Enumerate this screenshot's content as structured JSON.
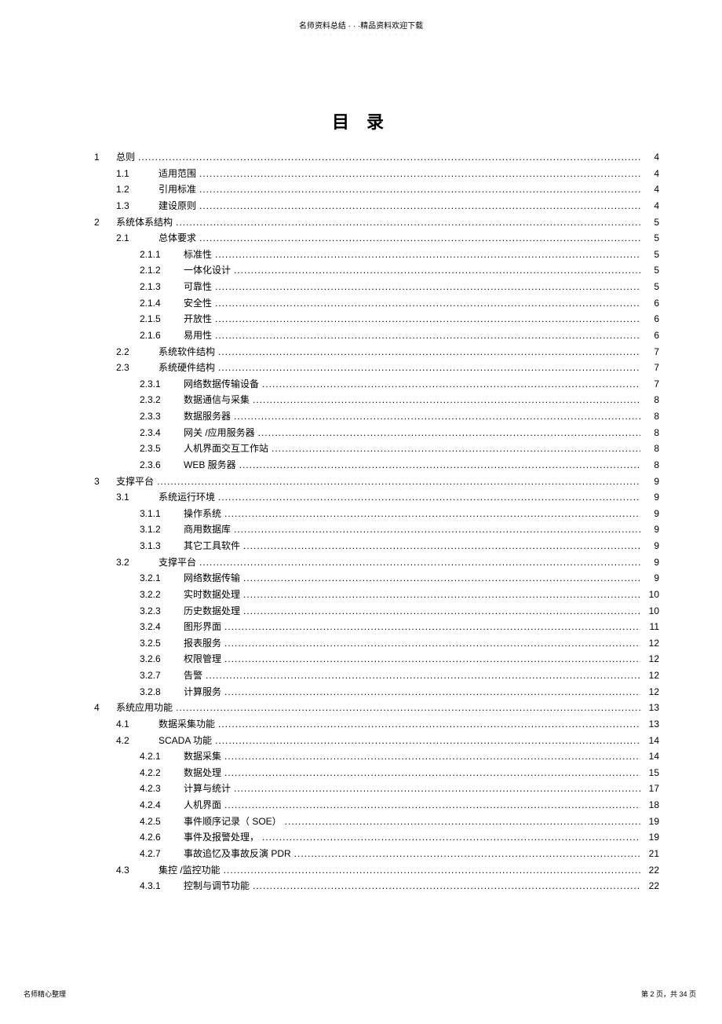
{
  "header": {
    "top": "名师资料总结 · · ·精品资料欢迎下载",
    "sub": "· · · · · · · · · · · · · · · · · ·"
  },
  "title": "目  录",
  "toc": [
    {
      "level": 1,
      "num": "1",
      "label": "总则",
      "page": "4"
    },
    {
      "level": 2,
      "num": "1.1",
      "label": "适用范围",
      "page": "4"
    },
    {
      "level": 2,
      "num": "1.2",
      "label": "引用标准",
      "page": "4"
    },
    {
      "level": 2,
      "num": "1.3",
      "label": "建设原则",
      "page": "4"
    },
    {
      "level": 1,
      "num": "2",
      "label": "系统体系结构",
      "page": "5"
    },
    {
      "level": 2,
      "num": "2.1",
      "label": "总体要求",
      "page": "5"
    },
    {
      "level": 3,
      "num": "2.1.1",
      "label": "标准性",
      "page": "5"
    },
    {
      "level": 3,
      "num": "2.1.2",
      "label": "一体化设计",
      "page": "5"
    },
    {
      "level": 3,
      "num": "2.1.3",
      "label": "可靠性",
      "page": "5"
    },
    {
      "level": 3,
      "num": "2.1.4",
      "label": "安全性",
      "page": "6"
    },
    {
      "level": 3,
      "num": "2.1.5",
      "label": "开放性",
      "page": "6"
    },
    {
      "level": 3,
      "num": "2.1.6",
      "label": "易用性",
      "page": "6"
    },
    {
      "level": 2,
      "num": "2.2",
      "label": "系统软件结构",
      "page": "7"
    },
    {
      "level": 2,
      "num": "2.3",
      "label": "系统硬件结构",
      "page": "7"
    },
    {
      "level": 3,
      "num": "2.3.1",
      "label": "网络数据传输设备",
      "page": "7"
    },
    {
      "level": 3,
      "num": "2.3.2",
      "label": "数据通信与采集",
      "page": "8"
    },
    {
      "level": 3,
      "num": "2.3.3",
      "label": "数据服务器",
      "page": "8"
    },
    {
      "level": 3,
      "num": "2.3.4",
      "label": "网关 /应用服务器",
      "page": "8"
    },
    {
      "level": 3,
      "num": "2.3.5",
      "label": "人机界面交互工作站",
      "page": "8"
    },
    {
      "level": 3,
      "num": "2.3.6",
      "label": "WEB 服务器",
      "page": "8"
    },
    {
      "level": 1,
      "num": "3",
      "label": "支撑平台",
      "page": "9"
    },
    {
      "level": 2,
      "num": "3.1",
      "label": "系统运行环境",
      "page": "9"
    },
    {
      "level": 3,
      "num": "3.1.1",
      "label": "操作系统",
      "page": "9"
    },
    {
      "level": 3,
      "num": "3.1.2",
      "label": "商用数据库",
      "page": "9"
    },
    {
      "level": 3,
      "num": "3.1.3",
      "label": "其它工具软件",
      "page": "9"
    },
    {
      "level": 2,
      "num": "3.2",
      "label": "支撑平台",
      "page": "9"
    },
    {
      "level": 3,
      "num": "3.2.1",
      "label": "网络数据传输",
      "page": "9"
    },
    {
      "level": 3,
      "num": "3.2.2",
      "label": "实时数据处理",
      "page": "10"
    },
    {
      "level": 3,
      "num": "3.2.3",
      "label": "历史数据处理",
      "page": "10"
    },
    {
      "level": 3,
      "num": "3.2.4",
      "label": "图形界面",
      "page": "11"
    },
    {
      "level": 3,
      "num": "3.2.5",
      "label": "报表服务",
      "page": "12"
    },
    {
      "level": 3,
      "num": "3.2.6",
      "label": "权限管理",
      "page": "12"
    },
    {
      "level": 3,
      "num": "3.2.7",
      "label": "告警",
      "page": "12"
    },
    {
      "level": 3,
      "num": "3.2.8",
      "label": "计算服务",
      "page": "12"
    },
    {
      "level": 1,
      "num": "4",
      "label": "系统应用功能",
      "page": "13"
    },
    {
      "level": 2,
      "num": "4.1",
      "label": "数据采集功能",
      "page": "13"
    },
    {
      "level": 2,
      "num": "4.2",
      "label": "SCADA 功能",
      "page": "14"
    },
    {
      "level": 3,
      "num": "4.2.1",
      "label": "数据采集",
      "page": "14"
    },
    {
      "level": 3,
      "num": "4.2.2",
      "label": "数据处理",
      "page": "15"
    },
    {
      "level": 3,
      "num": "4.2.3",
      "label": "计算与统计",
      "page": "17"
    },
    {
      "level": 3,
      "num": "4.2.4",
      "label": "人机界面",
      "page": "18"
    },
    {
      "level": 3,
      "num": "4.2.5",
      "label": "事件顺序记录（  SOE）",
      "page": "19"
    },
    {
      "level": 3,
      "num": "4.2.6",
      "label": "事件及报警处理，",
      "page": "19"
    },
    {
      "level": 3,
      "num": "4.2.7",
      "label": "事故追忆及事故反演   PDR",
      "page": "21"
    },
    {
      "level": 2,
      "num": "4.3",
      "label": "集控 /监控功能",
      "page": "22"
    },
    {
      "level": 3,
      "num": "4.3.1",
      "label": "控制与调节功能",
      "page": "22"
    }
  ],
  "footer": {
    "left": "名师精心整理",
    "leftSub": "· · · · · · ·",
    "right": "第 2 页，共 34 页",
    "rightSub": "· · · · · · · · · ·"
  }
}
